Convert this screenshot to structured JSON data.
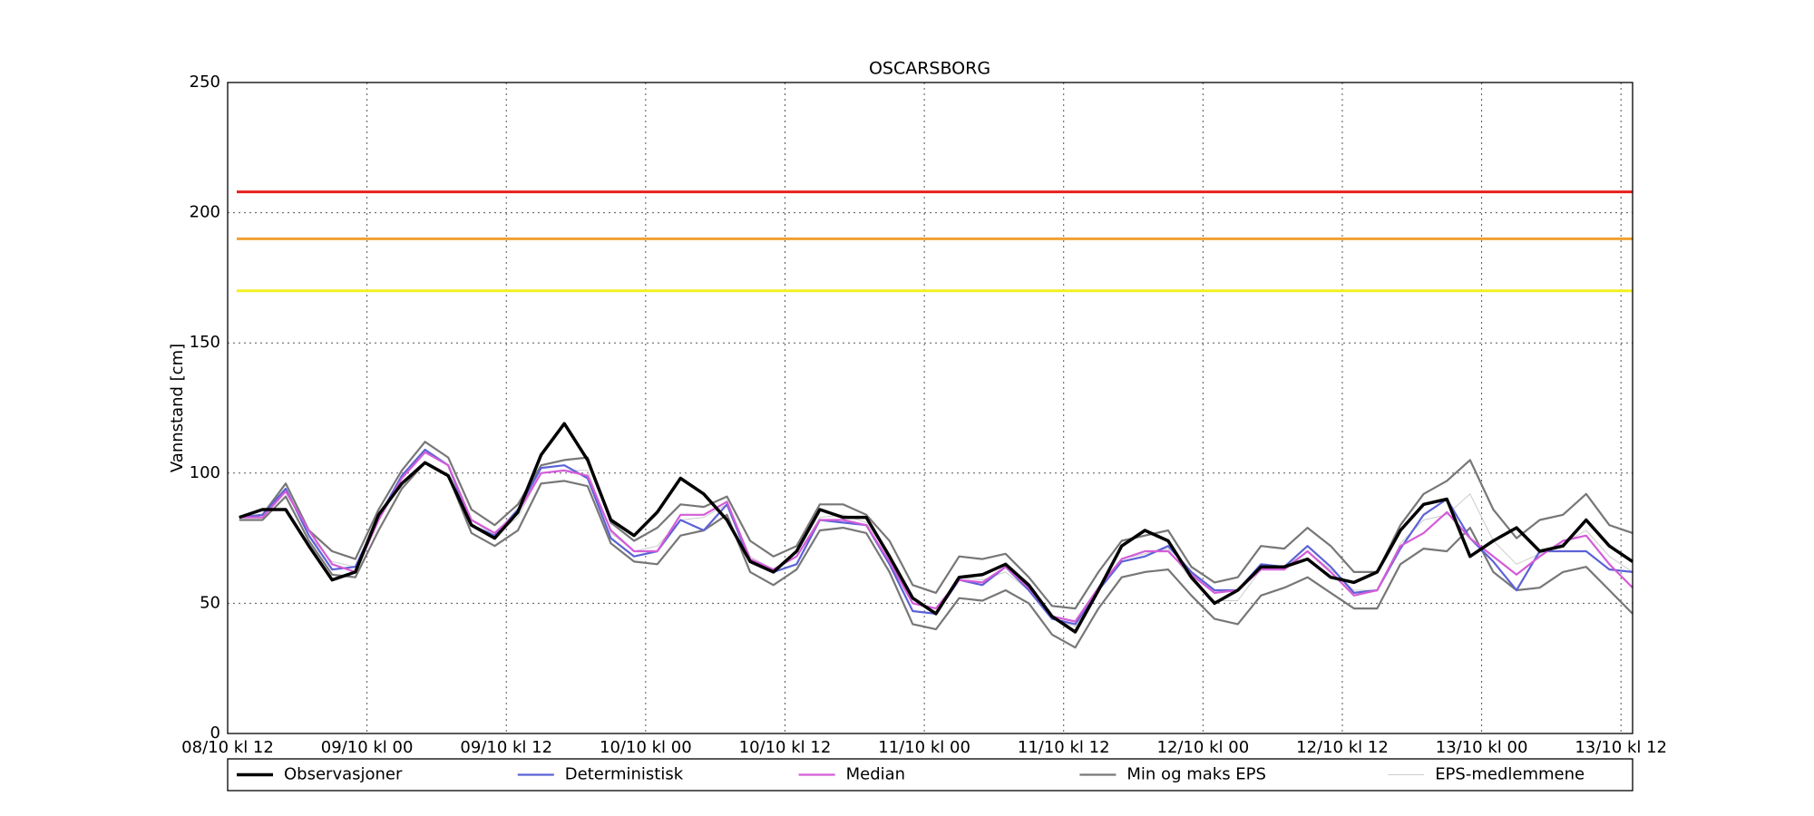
{
  "chart_data": {
    "type": "line",
    "title": "OSCARSBORG",
    "y_label": "Vannstand [cm]",
    "x": [
      1,
      3,
      5,
      7,
      9,
      11,
      13,
      15,
      17,
      19,
      21,
      23,
      25,
      27,
      29,
      31,
      33,
      35,
      37,
      39,
      41,
      43,
      45,
      47,
      49,
      51,
      53,
      55,
      57,
      59,
      61,
      63,
      65,
      67,
      69,
      71,
      73,
      75,
      77,
      79,
      81,
      83,
      85,
      87,
      89,
      91,
      93,
      95,
      97,
      99,
      101,
      103,
      105,
      107,
      109,
      111,
      113,
      115,
      117,
      119,
      121
    ],
    "xlim": [
      0,
      121
    ],
    "xticks": [
      {
        "value": 0,
        "label": "08/10 kl 12"
      },
      {
        "value": 12,
        "label": "09/10 kl 00"
      },
      {
        "value": 24,
        "label": "09/10 kl 12"
      },
      {
        "value": 36,
        "label": "10/10 kl 00"
      },
      {
        "value": 48,
        "label": "10/10 kl 12"
      },
      {
        "value": 60,
        "label": "11/10 kl 00"
      },
      {
        "value": 72,
        "label": "11/10 kl 12"
      },
      {
        "value": 84,
        "label": "12/10 kl 00"
      },
      {
        "value": 96,
        "label": "12/10 kl 12"
      },
      {
        "value": 108,
        "label": "13/10 kl 00"
      },
      {
        "value": 120,
        "label": "13/10 kl 12"
      }
    ],
    "ylim": [
      0,
      250
    ],
    "yticks": [
      0,
      50,
      100,
      150,
      200,
      250
    ],
    "grid": true,
    "thresholds": [
      {
        "value": 208,
        "color": "#e8201c"
      },
      {
        "value": 190,
        "color": "#f0a030"
      },
      {
        "value": 170,
        "color": "#f4f020"
      }
    ],
    "series": [
      {
        "name": "Observasjoner",
        "color": "#000000",
        "width": 3.5,
        "values": [
          83,
          86,
          86,
          72,
          59,
          62,
          84,
          96,
          104,
          99,
          80,
          75,
          85,
          107,
          119,
          105,
          82,
          76,
          85,
          98,
          92,
          82,
          66,
          62,
          70,
          86,
          83,
          83,
          68,
          52,
          46,
          60,
          61,
          65,
          57,
          45,
          39,
          55,
          72,
          78,
          74,
          60,
          50,
          55,
          64,
          64,
          67,
          60,
          58,
          62,
          78,
          88,
          90,
          68,
          74,
          79,
          70,
          72,
          82,
          72,
          66
        ]
      },
      {
        "name": "Deterministisk",
        "color": "#5c62d6",
        "width": 2.2,
        "values": [
          83,
          84,
          94,
          76,
          63,
          64,
          83,
          99,
          109,
          103,
          80,
          76,
          86,
          102,
          103,
          98,
          75,
          68,
          70,
          82,
          78,
          88,
          66,
          62,
          65,
          82,
          81,
          80,
          65,
          47,
          46,
          59,
          57,
          64,
          55,
          44,
          42,
          55,
          66,
          68,
          72,
          62,
          55,
          55,
          65,
          64,
          72,
          64,
          54,
          55,
          71,
          84,
          90,
          75,
          66,
          55,
          70,
          70,
          70,
          63,
          62
        ]
      },
      {
        "name": "Median",
        "color": "#d45cd8",
        "width": 2.2,
        "values": [
          83,
          83,
          93,
          78,
          65,
          62,
          82,
          98,
          108,
          103,
          82,
          77,
          85,
          100,
          101,
          99,
          78,
          70,
          70,
          84,
          84,
          89,
          67,
          63,
          68,
          82,
          82,
          80,
          66,
          50,
          48,
          59,
          58,
          64,
          56,
          45,
          43,
          56,
          67,
          70,
          70,
          61,
          54,
          55,
          63,
          63,
          70,
          62,
          53,
          55,
          72,
          77,
          85,
          75,
          68,
          61,
          68,
          74,
          76,
          65,
          56
        ]
      },
      {
        "name": "Min og maks EPS",
        "color": "#777777",
        "width": 2.2,
        "max": [
          83,
          84,
          96,
          78,
          70,
          67,
          86,
          101,
          112,
          106,
          86,
          80,
          88,
          103,
          105,
          106,
          81,
          74,
          79,
          88,
          87,
          91,
          74,
          68,
          72,
          88,
          88,
          84,
          74,
          57,
          54,
          68,
          67,
          69,
          60,
          49,
          48,
          62,
          74,
          76,
          78,
          64,
          58,
          60,
          72,
          71,
          79,
          72,
          62,
          62,
          80,
          92,
          97,
          105,
          86,
          75,
          82,
          84,
          92,
          80,
          77
        ],
        "min": [
          82,
          82,
          91,
          74,
          61,
          60,
          78,
          94,
          104,
          99,
          77,
          72,
          78,
          96,
          97,
          95,
          73,
          66,
          65,
          76,
          78,
          84,
          62,
          57,
          63,
          78,
          79,
          77,
          62,
          42,
          40,
          52,
          51,
          55,
          50,
          38,
          33,
          48,
          60,
          62,
          63,
          53,
          44,
          42,
          53,
          56,
          60,
          54,
          48,
          48,
          65,
          71,
          70,
          79,
          62,
          55,
          56,
          62,
          64,
          55,
          46
        ]
      },
      {
        "name": "EPS-medlemmene",
        "color": "#cccccc",
        "width": 1,
        "values": [
          83,
          83,
          94,
          76,
          66,
          64,
          82,
          98,
          108,
          103,
          82,
          76,
          83,
          100,
          101,
          101,
          77,
          70,
          72,
          82,
          83,
          88,
          68,
          63,
          68,
          83,
          84,
          81,
          68,
          50,
          47,
          60,
          59,
          62,
          55,
          44,
          41,
          55,
          67,
          69,
          71,
          59,
          51,
          51,
          63,
          64,
          70,
          63,
          55,
          55,
          73,
          82,
          84,
          92,
          74,
          65,
          69,
          73,
          78,
          68,
          62
        ]
      }
    ]
  }
}
